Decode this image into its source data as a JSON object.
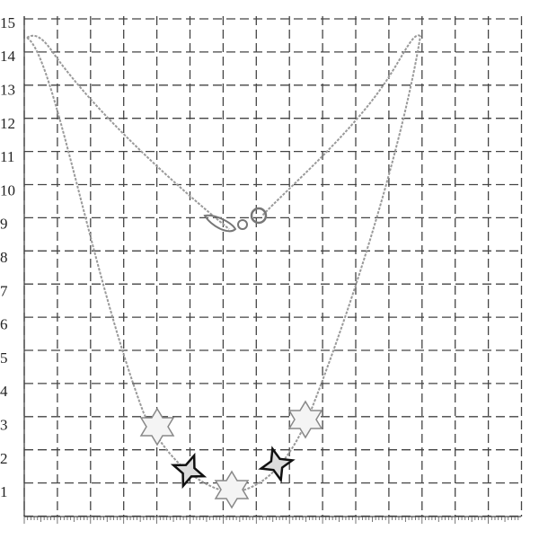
{
  "scale": {
    "labels": [
      15,
      14,
      13,
      12,
      11,
      10,
      9,
      8,
      7,
      6,
      5,
      4,
      3,
      2,
      1
    ]
  }
}
